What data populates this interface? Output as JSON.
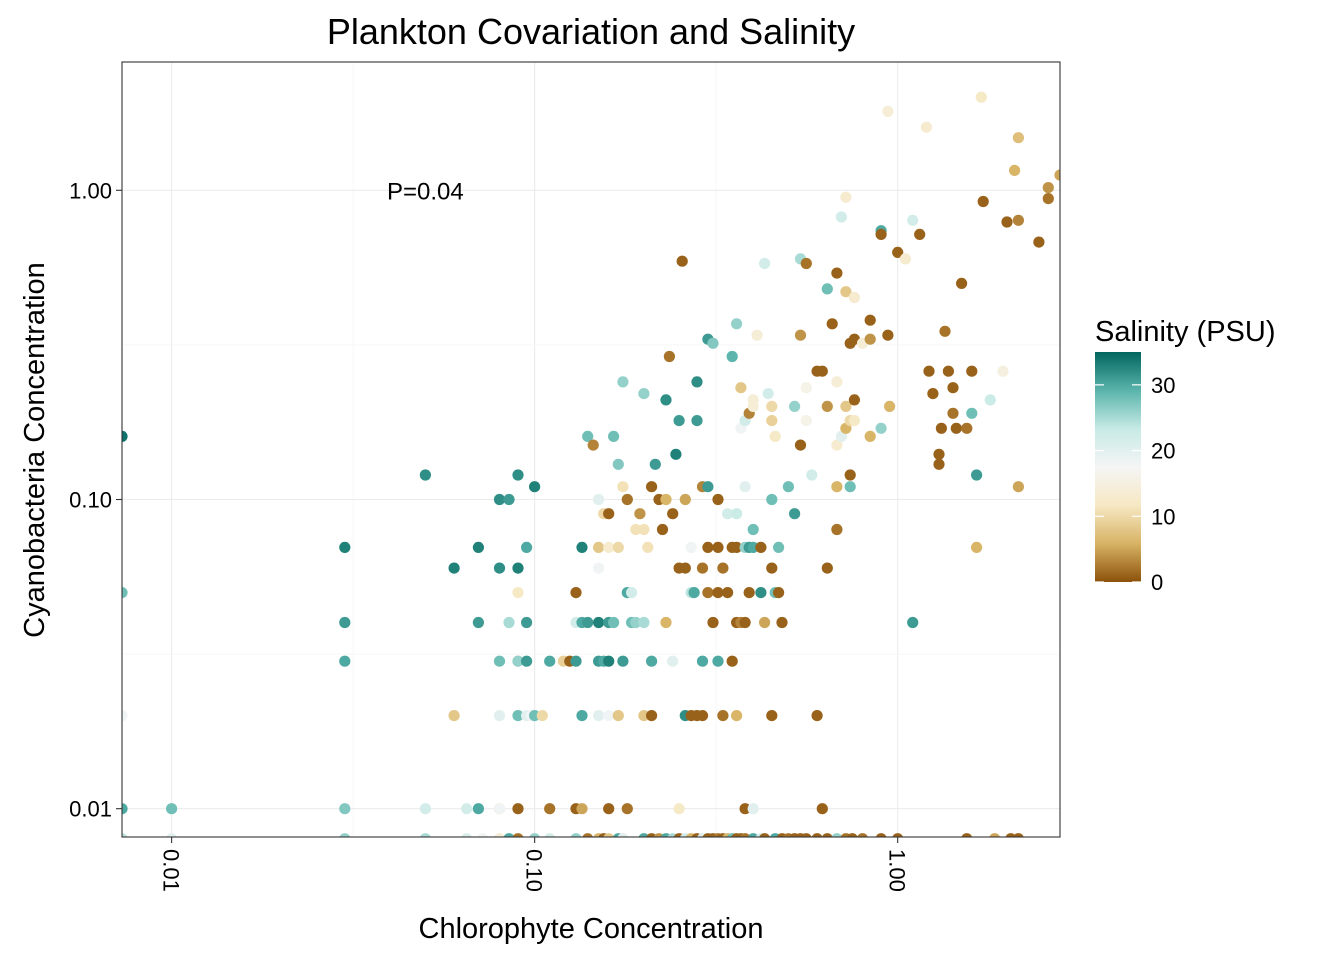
{
  "chart_data": {
    "type": "scatter",
    "title": "Plankton Covariation and Salinity",
    "xlabel": "Chlorophyte Concentration",
    "ylabel": "Cyanobacteria Concentration",
    "x_scale": "log10",
    "y_scale": "log10",
    "xlim": [
      0.0073,
      2.8
    ],
    "ylim": [
      0.0081,
      2.6
    ],
    "x_ticks": [
      0.01,
      0.1,
      1.0
    ],
    "x_tick_labels": [
      "0.01",
      "0.10",
      "1.00"
    ],
    "y_ticks": [
      0.01,
      0.1,
      1.0
    ],
    "y_tick_labels": [
      "0.01",
      "0.10",
      "1.00"
    ],
    "grid": true,
    "annotation": {
      "text": "P=0.04",
      "x": 0.05,
      "y": 1.0
    },
    "legend": {
      "title": "Salinity (PSU)",
      "position": "right",
      "range": [
        0,
        35
      ],
      "ticks": [
        0,
        10,
        20,
        30
      ],
      "tick_labels": [
        "0",
        "10",
        "20",
        "30"
      ],
      "colors": [
        "#8c510a",
        "#d8b365",
        "#f6e8c3",
        "#f5f5f5",
        "#c7eae5",
        "#5ab4ac",
        "#01665e"
      ]
    },
    "points": [
      [
        0.0073,
        0.16,
        34
      ],
      [
        0.0073,
        0.05,
        28
      ],
      [
        0.0073,
        0.02,
        18
      ],
      [
        0.0073,
        0.01,
        30
      ],
      [
        0.0073,
        0.008,
        24
      ],
      [
        0.01,
        0.01,
        28
      ],
      [
        0.01,
        0.008,
        20
      ],
      [
        0.03,
        0.07,
        33
      ],
      [
        0.03,
        0.04,
        31
      ],
      [
        0.03,
        0.03,
        30
      ],
      [
        0.03,
        0.01,
        27
      ],
      [
        0.03,
        0.008,
        26
      ],
      [
        0.05,
        0.12,
        32
      ],
      [
        0.05,
        0.01,
        22
      ],
      [
        0.05,
        0.008,
        25
      ],
      [
        0.06,
        0.06,
        33
      ],
      [
        0.06,
        0.02,
        8
      ],
      [
        0.065,
        0.01,
        22
      ],
      [
        0.065,
        0.008,
        21
      ],
      [
        0.07,
        0.07,
        33
      ],
      [
        0.07,
        0.04,
        31
      ],
      [
        0.07,
        0.01,
        30
      ],
      [
        0.072,
        0.008,
        18
      ],
      [
        0.08,
        0.1,
        32
      ],
      [
        0.08,
        0.06,
        32
      ],
      [
        0.08,
        0.03,
        28
      ],
      [
        0.08,
        0.02,
        20
      ],
      [
        0.08,
        0.01,
        8
      ],
      [
        0.08,
        0.01,
        18
      ],
      [
        0.08,
        0.008,
        14
      ],
      [
        0.085,
        0.1,
        31
      ],
      [
        0.085,
        0.04,
        25
      ],
      [
        0.085,
        0.008,
        30
      ],
      [
        0.09,
        0.12,
        32
      ],
      [
        0.09,
        0.06,
        33
      ],
      [
        0.09,
        0.05,
        12
      ],
      [
        0.09,
        0.03,
        8
      ],
      [
        0.09,
        0.03,
        26
      ],
      [
        0.09,
        0.02,
        28
      ],
      [
        0.09,
        0.01,
        1
      ],
      [
        0.09,
        0.008,
        2
      ],
      [
        0.095,
        0.07,
        30
      ],
      [
        0.095,
        0.04,
        31
      ],
      [
        0.095,
        0.03,
        31
      ],
      [
        0.095,
        0.02,
        20
      ],
      [
        0.098,
        0.02,
        18
      ],
      [
        0.1,
        0.11,
        33
      ],
      [
        0.1,
        0.02,
        28
      ],
      [
        0.1,
        0.008,
        26
      ],
      [
        0.105,
        0.02,
        10
      ],
      [
        0.11,
        0.03,
        30
      ],
      [
        0.11,
        0.01,
        2
      ],
      [
        0.11,
        0.008,
        22
      ],
      [
        0.12,
        0.03,
        9
      ],
      [
        0.125,
        0.03,
        1
      ],
      [
        0.13,
        0.05,
        1
      ],
      [
        0.13,
        0.04,
        22
      ],
      [
        0.13,
        0.03,
        31
      ],
      [
        0.13,
        0.01,
        1
      ],
      [
        0.13,
        0.008,
        26
      ],
      [
        0.135,
        0.07,
        33
      ],
      [
        0.135,
        0.04,
        30
      ],
      [
        0.135,
        0.02,
        30
      ],
      [
        0.135,
        0.01,
        5
      ],
      [
        0.14,
        0.16,
        28
      ],
      [
        0.14,
        0.04,
        31
      ],
      [
        0.14,
        0.008,
        2
      ],
      [
        0.145,
        0.15,
        3
      ],
      [
        0.15,
        0.1,
        20
      ],
      [
        0.15,
        0.07,
        8
      ],
      [
        0.15,
        0.06,
        18
      ],
      [
        0.15,
        0.04,
        33
      ],
      [
        0.15,
        0.03,
        31
      ],
      [
        0.15,
        0.02,
        20
      ],
      [
        0.15,
        0.008,
        6
      ],
      [
        0.155,
        0.09,
        10
      ],
      [
        0.155,
        0.03,
        30
      ],
      [
        0.155,
        0.008,
        1
      ],
      [
        0.16,
        0.09,
        1
      ],
      [
        0.16,
        0.07,
        13
      ],
      [
        0.16,
        0.04,
        31
      ],
      [
        0.16,
        0.03,
        33
      ],
      [
        0.16,
        0.02,
        18
      ],
      [
        0.16,
        0.01,
        1
      ],
      [
        0.16,
        0.008,
        8
      ],
      [
        0.165,
        0.16,
        28
      ],
      [
        0.165,
        0.04,
        28
      ],
      [
        0.17,
        0.13,
        27
      ],
      [
        0.17,
        0.07,
        10
      ],
      [
        0.17,
        0.02,
        8
      ],
      [
        0.17,
        0.008,
        30
      ],
      [
        0.175,
        0.24,
        26
      ],
      [
        0.175,
        0.11,
        11
      ],
      [
        0.175,
        0.03,
        31
      ],
      [
        0.175,
        0.008,
        20
      ],
      [
        0.18,
        0.1,
        2
      ],
      [
        0.18,
        0.05,
        30
      ],
      [
        0.18,
        0.01,
        2
      ],
      [
        0.185,
        0.05,
        22
      ],
      [
        0.185,
        0.04,
        28
      ],
      [
        0.19,
        0.08,
        11
      ],
      [
        0.19,
        0.04,
        26
      ],
      [
        0.195,
        0.09,
        4
      ],
      [
        0.2,
        0.22,
        26
      ],
      [
        0.2,
        0.08,
        11
      ],
      [
        0.2,
        0.04,
        25
      ],
      [
        0.2,
        0.02,
        8
      ],
      [
        0.2,
        0.008,
        30
      ],
      [
        0.205,
        0.07,
        11
      ],
      [
        0.21,
        0.11,
        1
      ],
      [
        0.21,
        0.03,
        30
      ],
      [
        0.21,
        0.02,
        1
      ],
      [
        0.21,
        0.008,
        1
      ],
      [
        0.215,
        0.13,
        31
      ],
      [
        0.22,
        0.1,
        1
      ],
      [
        0.22,
        0.008,
        4
      ],
      [
        0.225,
        0.08,
        1
      ],
      [
        0.23,
        0.21,
        32
      ],
      [
        0.23,
        0.1,
        6
      ],
      [
        0.23,
        0.04,
        6
      ],
      [
        0.23,
        0.008,
        30
      ],
      [
        0.235,
        0.29,
        2
      ],
      [
        0.24,
        0.09,
        1
      ],
      [
        0.24,
        0.03,
        20
      ],
      [
        0.24,
        0.008,
        25
      ],
      [
        0.245,
        0.14,
        33
      ],
      [
        0.25,
        0.18,
        31
      ],
      [
        0.25,
        0.06,
        1
      ],
      [
        0.25,
        0.01,
        12
      ],
      [
        0.25,
        0.008,
        1
      ],
      [
        0.255,
        0.59,
        1
      ],
      [
        0.26,
        0.1,
        5
      ],
      [
        0.26,
        0.06,
        1
      ],
      [
        0.26,
        0.02,
        32
      ],
      [
        0.26,
        0.008,
        22
      ],
      [
        0.27,
        0.07,
        18
      ],
      [
        0.27,
        0.05,
        24
      ],
      [
        0.27,
        0.02,
        1
      ],
      [
        0.27,
        0.008,
        6
      ],
      [
        0.275,
        0.05,
        30
      ],
      [
        0.28,
        0.24,
        32
      ],
      [
        0.28,
        0.18,
        31
      ],
      [
        0.28,
        0.02,
        1
      ],
      [
        0.28,
        0.008,
        1
      ],
      [
        0.29,
        0.11,
        3
      ],
      [
        0.29,
        0.06,
        2
      ],
      [
        0.29,
        0.03,
        30
      ],
      [
        0.29,
        0.02,
        1
      ],
      [
        0.29,
        0.008,
        20
      ],
      [
        0.3,
        0.33,
        31
      ],
      [
        0.3,
        0.11,
        31
      ],
      [
        0.3,
        0.07,
        1
      ],
      [
        0.3,
        0.05,
        2
      ],
      [
        0.3,
        0.008,
        1
      ],
      [
        0.31,
        0.32,
        27
      ],
      [
        0.31,
        0.04,
        1
      ],
      [
        0.31,
        0.008,
        1
      ],
      [
        0.32,
        0.1,
        1
      ],
      [
        0.32,
        0.07,
        1
      ],
      [
        0.32,
        0.05,
        1
      ],
      [
        0.32,
        0.03,
        30
      ],
      [
        0.32,
        0.008,
        2
      ],
      [
        0.33,
        0.06,
        2
      ],
      [
        0.33,
        0.02,
        2
      ],
      [
        0.33,
        0.008,
        1
      ],
      [
        0.34,
        0.09,
        22
      ],
      [
        0.34,
        0.05,
        1
      ],
      [
        0.34,
        0.008,
        6
      ],
      [
        0.35,
        0.29,
        29
      ],
      [
        0.35,
        0.07,
        1
      ],
      [
        0.35,
        0.03,
        1
      ],
      [
        0.35,
        0.008,
        28
      ],
      [
        0.36,
        0.37,
        26
      ],
      [
        0.36,
        0.09,
        23
      ],
      [
        0.36,
        0.07,
        1
      ],
      [
        0.36,
        0.04,
        1
      ],
      [
        0.36,
        0.02,
        6
      ],
      [
        0.36,
        0.008,
        1
      ],
      [
        0.37,
        0.23,
        8
      ],
      [
        0.37,
        0.17,
        18
      ],
      [
        0.37,
        0.04,
        3
      ],
      [
        0.37,
        0.008,
        1
      ],
      [
        0.38,
        0.18,
        22
      ],
      [
        0.38,
        0.11,
        20
      ],
      [
        0.38,
        0.07,
        26
      ],
      [
        0.38,
        0.04,
        1
      ],
      [
        0.38,
        0.01,
        1
      ],
      [
        0.38,
        0.008,
        2
      ],
      [
        0.39,
        0.19,
        3
      ],
      [
        0.39,
        0.07,
        31
      ],
      [
        0.39,
        0.05,
        1
      ],
      [
        0.4,
        0.21,
        14
      ],
      [
        0.4,
        0.2,
        14
      ],
      [
        0.4,
        0.08,
        28
      ],
      [
        0.4,
        0.07,
        30
      ],
      [
        0.4,
        0.01,
        20
      ],
      [
        0.4,
        0.008,
        30
      ],
      [
        0.41,
        0.34,
        14
      ],
      [
        0.42,
        0.07,
        1
      ],
      [
        0.42,
        0.05,
        32
      ],
      [
        0.42,
        0.008,
        22
      ],
      [
        0.43,
        0.58,
        22
      ],
      [
        0.43,
        0.04,
        5
      ],
      [
        0.43,
        0.008,
        1
      ],
      [
        0.44,
        0.22,
        22
      ],
      [
        0.45,
        0.2,
        10
      ],
      [
        0.45,
        0.18,
        9
      ],
      [
        0.45,
        0.1,
        28
      ],
      [
        0.45,
        0.06,
        1
      ],
      [
        0.45,
        0.02,
        1
      ],
      [
        0.46,
        0.16,
        12
      ],
      [
        0.46,
        0.05,
        28
      ],
      [
        0.46,
        0.008,
        30
      ],
      [
        0.47,
        0.07,
        28
      ],
      [
        0.47,
        0.05,
        1
      ],
      [
        0.48,
        0.04,
        1
      ],
      [
        0.48,
        0.008,
        1
      ],
      [
        0.5,
        0.11,
        28
      ],
      [
        0.5,
        0.008,
        2
      ],
      [
        0.52,
        0.2,
        26
      ],
      [
        0.52,
        0.09,
        31
      ],
      [
        0.52,
        0.008,
        1
      ],
      [
        0.54,
        0.6,
        25
      ],
      [
        0.54,
        0.34,
        4
      ],
      [
        0.54,
        0.15,
        1
      ],
      [
        0.54,
        0.008,
        1
      ],
      [
        0.56,
        0.58,
        2
      ],
      [
        0.56,
        0.23,
        16
      ],
      [
        0.56,
        0.18,
        16
      ],
      [
        0.56,
        0.008,
        1
      ],
      [
        0.58,
        0.12,
        22
      ],
      [
        0.6,
        0.26,
        1
      ],
      [
        0.6,
        0.02,
        1
      ],
      [
        0.6,
        0.008,
        1
      ],
      [
        0.62,
        0.26,
        1
      ],
      [
        0.62,
        0.01,
        1
      ],
      [
        0.64,
        0.48,
        28
      ],
      [
        0.64,
        0.2,
        4
      ],
      [
        0.64,
        0.06,
        1
      ],
      [
        0.64,
        0.008,
        1
      ],
      [
        0.66,
        0.37,
        1
      ],
      [
        0.68,
        0.54,
        1
      ],
      [
        0.68,
        0.24,
        14
      ],
      [
        0.68,
        0.15,
        13
      ],
      [
        0.68,
        0.11,
        6
      ],
      [
        0.68,
        0.08,
        2
      ],
      [
        0.68,
        0.008,
        26
      ],
      [
        0.7,
        0.82,
        22
      ],
      [
        0.7,
        0.16,
        20
      ],
      [
        0.72,
        0.95,
        13
      ],
      [
        0.72,
        0.47,
        8
      ],
      [
        0.72,
        0.2,
        8
      ],
      [
        0.72,
        0.17,
        6
      ],
      [
        0.72,
        0.008,
        2
      ],
      [
        0.74,
        0.32,
        1
      ],
      [
        0.74,
        0.18,
        10
      ],
      [
        0.74,
        0.12,
        1
      ],
      [
        0.74,
        0.11,
        28
      ],
      [
        0.75,
        0.008,
        1
      ],
      [
        0.76,
        0.45,
        13
      ],
      [
        0.76,
        0.33,
        1
      ],
      [
        0.76,
        0.21,
        1
      ],
      [
        0.76,
        0.18,
        12
      ],
      [
        0.8,
        0.32,
        14
      ],
      [
        0.8,
        0.008,
        2
      ],
      [
        0.84,
        0.38,
        1
      ],
      [
        0.84,
        0.33,
        4
      ],
      [
        0.84,
        0.16,
        6
      ],
      [
        0.9,
        0.74,
        30
      ],
      [
        0.9,
        0.72,
        1
      ],
      [
        0.9,
        0.17,
        26
      ],
      [
        0.9,
        0.008,
        1
      ],
      [
        0.94,
        1.8,
        14
      ],
      [
        0.94,
        0.34,
        1
      ],
      [
        0.95,
        0.2,
        6
      ],
      [
        1.0,
        0.63,
        1
      ],
      [
        1.0,
        0.008,
        1
      ],
      [
        1.05,
        0.6,
        13
      ],
      [
        1.1,
        0.04,
        31
      ],
      [
        1.1,
        0.8,
        22
      ],
      [
        1.15,
        0.72,
        1
      ],
      [
        1.2,
        1.6,
        13
      ],
      [
        1.22,
        0.26,
        1
      ],
      [
        1.25,
        0.22,
        1
      ],
      [
        1.3,
        0.14,
        1
      ],
      [
        1.3,
        0.13,
        1
      ],
      [
        1.32,
        0.17,
        1
      ],
      [
        1.35,
        0.35,
        2
      ],
      [
        1.38,
        0.26,
        1
      ],
      [
        1.42,
        0.23,
        1
      ],
      [
        1.42,
        0.19,
        2
      ],
      [
        1.45,
        0.17,
        1
      ],
      [
        1.5,
        0.5,
        1
      ],
      [
        1.55,
        0.17,
        2
      ],
      [
        1.55,
        0.008,
        1
      ],
      [
        1.6,
        0.26,
        1
      ],
      [
        1.6,
        0.19,
        28
      ],
      [
        1.65,
        0.12,
        31
      ],
      [
        1.65,
        0.07,
        6
      ],
      [
        1.7,
        2.0,
        12
      ],
      [
        1.72,
        0.92,
        1
      ],
      [
        1.8,
        0.21,
        23
      ],
      [
        1.85,
        0.008,
        5
      ],
      [
        1.95,
        0.26,
        15
      ],
      [
        2.0,
        0.79,
        1
      ],
      [
        2.05,
        0.008,
        1
      ],
      [
        2.1,
        1.16,
        6
      ],
      [
        2.15,
        1.48,
        7
      ],
      [
        2.15,
        0.8,
        3
      ],
      [
        2.15,
        0.11,
        5
      ],
      [
        2.15,
        0.008,
        1
      ],
      [
        2.45,
        0.68,
        1
      ],
      [
        2.6,
        1.02,
        4
      ],
      [
        2.6,
        0.94,
        2
      ],
      [
        2.8,
        1.12,
        5
      ]
    ]
  }
}
